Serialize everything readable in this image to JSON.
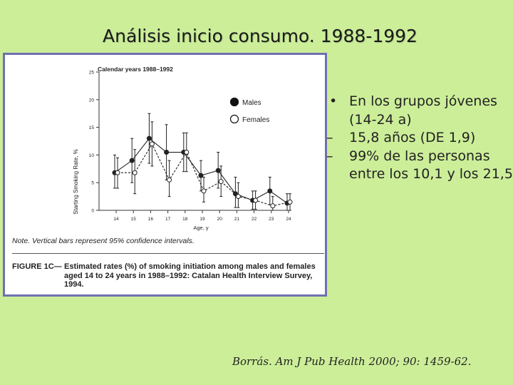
{
  "slide": {
    "title": "Análisis inicio consumo. 1988-1992",
    "bullets": [
      {
        "marker": "•",
        "text": "En los grupos jóvenes (14-24 a)"
      },
      {
        "marker": "–",
        "text": "15,8 años (DE 1,9)"
      },
      {
        "marker": "–",
        "text": " 99% de las personas entre los 10,1 y los 21,5"
      }
    ],
    "citation": "Borrás. Am J Pub Health 2000; 90: 1459-62."
  },
  "figure": {
    "note": "Note. Vertical bars represent 95% confidence intervals.",
    "label": "FIGURE 1C—",
    "caption": "Estimated rates (%) of smoking initiation among males and females aged 14 to 24 years in 1988–1992: Catalan Health Interview Survey, 1994."
  },
  "chart_data": {
    "type": "line",
    "title": "Calendar years 1988–1992",
    "xlabel": "Age, y",
    "ylabel": "Starting Smoking Rate, %",
    "categories": [
      "14",
      "15",
      "16",
      "17",
      "18",
      "19",
      "20",
      "21",
      "22",
      "23",
      "24"
    ],
    "ylim": [
      0,
      25
    ],
    "yticks": [
      0,
      5,
      10,
      15,
      20,
      25
    ],
    "grid": false,
    "legend_position": "upper-right",
    "series": [
      {
        "name": "Males",
        "marker": "filled-circle",
        "values": [
          6.8,
          9.0,
          13.0,
          10.5,
          10.5,
          6.3,
          7.2,
          3.0,
          1.8,
          3.5,
          1.3
        ],
        "ci_low": [
          4.0,
          5.0,
          8.5,
          5.5,
          7.0,
          3.5,
          4.0,
          0.5,
          0.2,
          1.0,
          0.0
        ],
        "ci_high": [
          10.0,
          13.0,
          17.5,
          15.5,
          14.0,
          9.0,
          10.5,
          6.0,
          3.5,
          6.0,
          3.0
        ]
      },
      {
        "name": "Females",
        "marker": "open-circle",
        "values": [
          6.8,
          6.8,
          12.0,
          5.5,
          10.5,
          3.5,
          5.2,
          2.5,
          1.8,
          0.8,
          1.5
        ],
        "ci_low": [
          4.0,
          3.0,
          8.0,
          2.5,
          7.0,
          1.5,
          2.5,
          0.5,
          0.2,
          0.0,
          0.0
        ],
        "ci_high": [
          9.5,
          11.0,
          16.0,
          9.0,
          14.0,
          6.0,
          8.0,
          5.0,
          3.5,
          2.5,
          3.0
        ]
      }
    ]
  }
}
